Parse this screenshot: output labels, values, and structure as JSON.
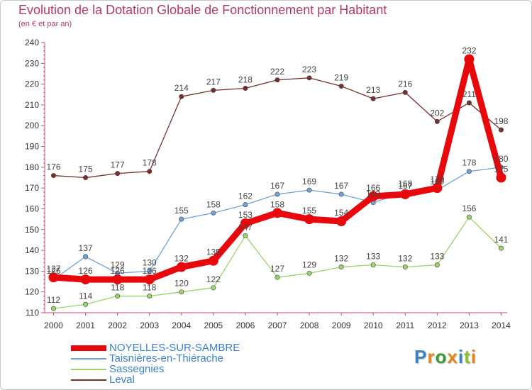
{
  "title": "Evolution de la Dotation Globale de Fonctionnement par Habitant",
  "subtitle": "(en € et par an)",
  "logo": {
    "text": "Proxiti",
    "colors": [
      "#3b82c4",
      "#e2871d",
      "#3a9a3a",
      "#e2871d",
      "#3b82c4",
      "#8bbf2a",
      "#e2871d"
    ]
  },
  "chart_data": {
    "type": "line",
    "title": "Evolution de la Dotation Globale de Fonctionnement par Habitant",
    "subtitle": "(en € et par an)",
    "x": [
      "2000",
      "2001",
      "2002",
      "2003",
      "2004",
      "2005",
      "2006",
      "2007",
      "2008",
      "2009",
      "2010",
      "2011",
      "2012",
      "2013",
      "2014"
    ],
    "ylim": [
      110,
      240
    ],
    "yticks": [
      110,
      120,
      130,
      140,
      150,
      160,
      170,
      180,
      190,
      200,
      210,
      220,
      230,
      240
    ],
    "grid": false,
    "legend_position": "bottom-left",
    "series": [
      {
        "name": "NOYELLES-SUR-SAMBRE",
        "color": "#e8080c",
        "values": [
          127,
          126,
          126,
          126,
          132,
          135,
          153,
          158,
          155,
          154,
          166,
          167,
          170,
          232,
          175
        ]
      },
      {
        "name": "Taisnières-en-Thiérache",
        "color": "#6ea3d8",
        "values": [
          126,
          137,
          129,
          130,
          155,
          158,
          162,
          167,
          169,
          167,
          163,
          168,
          169,
          178,
          180
        ]
      },
      {
        "name": "Sassegnies",
        "color": "#9bd46a",
        "values": [
          112,
          114,
          118,
          118,
          120,
          122,
          147,
          127,
          129,
          132,
          133,
          132,
          133,
          156,
          141
        ]
      },
      {
        "name": "Leval",
        "color": "#7a2e2e",
        "values": [
          176,
          175,
          177,
          178,
          214,
          217,
          218,
          222,
          223,
          219,
          213,
          216,
          202,
          211,
          198
        ]
      }
    ]
  }
}
